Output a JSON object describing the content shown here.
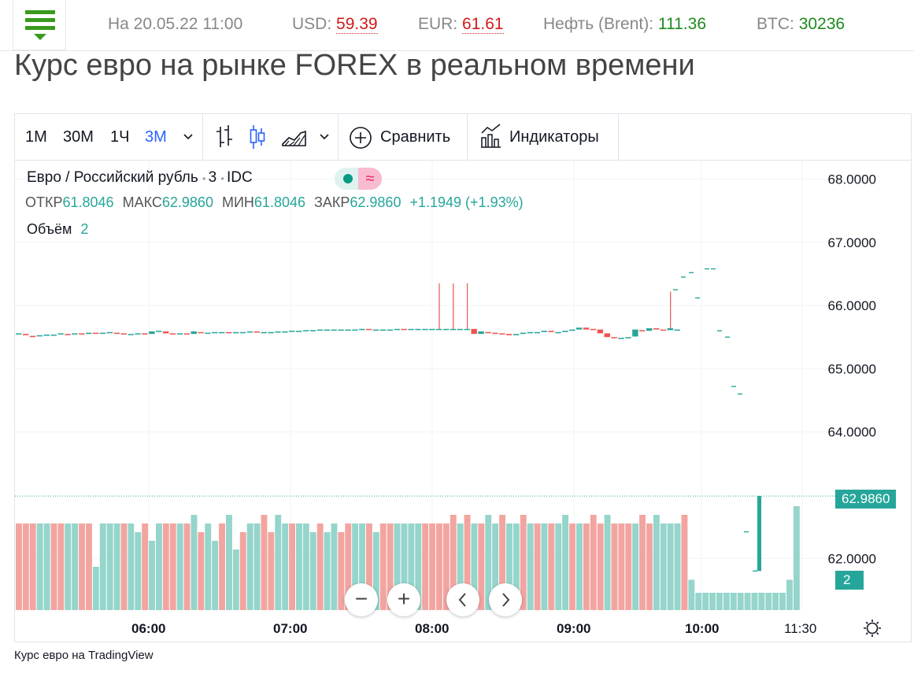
{
  "header": {
    "date_text": "На 20.05.22 11:00",
    "usd_label": "USD:",
    "usd_value": "59.39",
    "eur_label": "EUR:",
    "eur_value": "61.61",
    "oil_label": "Нефть (Brent):",
    "oil_value": "111.36",
    "btc_label": "BTC:",
    "btc_value": "30236"
  },
  "page_title": "Курс евро на рынке FOREX в реальном времени",
  "toolbar": {
    "intervals": [
      "1М",
      "30М",
      "1Ч",
      "3М"
    ],
    "active_interval": "3М",
    "compare_label": "Сравнить",
    "indicators_label": "Индикаторы"
  },
  "legend": {
    "symbol": "Евро / Российский рубль",
    "interval": "3",
    "source": "IDC",
    "ohlc": {
      "open_label": "ОТКР",
      "open": "61.8046",
      "high_label": "МАКС",
      "high": "62.9860",
      "low_label": "МИН",
      "low": "61.8046",
      "close_label": "ЗАКР",
      "close": "62.9860",
      "change": "+1.1949 (+1.93%)"
    },
    "volume_label": "Объём",
    "volume_value": "2"
  },
  "price_tag": "62.9860",
  "volume_tag": "2",
  "caption": "Курс евро на TradingView",
  "colors": {
    "up": "#26a69a",
    "down": "#ef5350",
    "vol_up": "#95d5cb",
    "vol_down": "#f2a5a0",
    "accent": "#2962ff"
  },
  "chart_data": {
    "type": "candlestick",
    "y_ticks": [
      "68.0000",
      "67.0000",
      "66.0000",
      "65.0000",
      "64.0000",
      "62.0000"
    ],
    "y_tick_values": [
      68,
      67,
      66,
      65,
      64,
      62
    ],
    "ylim": [
      61.2,
      68.5
    ],
    "x_ticks": [
      "06:00",
      "07:00",
      "08:00",
      "09:00",
      "10:00",
      "11:30"
    ],
    "last_price": 62.986,
    "candles": [
      {
        "o": 65.56,
        "c": 65.56
      },
      {
        "o": 65.55,
        "c": 65.53
      },
      {
        "o": 65.52,
        "c": 65.5
      },
      {
        "o": 65.52,
        "c": 65.53
      },
      {
        "o": 65.53,
        "c": 65.54
      },
      {
        "o": 65.54,
        "c": 65.54
      },
      {
        "o": 65.55,
        "c": 65.56
      },
      {
        "o": 65.55,
        "c": 65.54
      },
      {
        "o": 65.55,
        "c": 65.56
      },
      {
        "o": 65.56,
        "c": 65.55
      },
      {
        "o": 65.55,
        "c": 65.57
      },
      {
        "o": 65.57,
        "c": 65.56
      },
      {
        "o": 65.57,
        "c": 65.57
      },
      {
        "o": 65.57,
        "c": 65.58
      },
      {
        "o": 65.57,
        "c": 65.56
      },
      {
        "o": 65.56,
        "c": 65.55
      },
      {
        "o": 65.55,
        "c": 65.55
      },
      {
        "o": 65.55,
        "c": 65.56
      },
      {
        "o": 65.56,
        "c": 65.55
      },
      {
        "o": 65.55,
        "c": 65.59
      },
      {
        "o": 65.59,
        "c": 65.6
      },
      {
        "o": 65.59,
        "c": 65.56
      },
      {
        "o": 65.56,
        "c": 65.55
      },
      {
        "o": 65.55,
        "c": 65.56
      },
      {
        "o": 65.56,
        "c": 65.55
      },
      {
        "o": 65.55,
        "c": 65.59
      },
      {
        "o": 65.58,
        "c": 65.57
      },
      {
        "o": 65.57,
        "c": 65.57
      },
      {
        "o": 65.57,
        "c": 65.58
      },
      {
        "o": 65.58,
        "c": 65.58
      },
      {
        "o": 65.58,
        "c": 65.57
      },
      {
        "o": 65.57,
        "c": 65.58
      },
      {
        "o": 65.58,
        "c": 65.58
      },
      {
        "o": 65.58,
        "c": 65.59
      },
      {
        "o": 65.59,
        "c": 65.58
      },
      {
        "o": 65.58,
        "c": 65.58
      },
      {
        "o": 65.58,
        "c": 65.58
      },
      {
        "o": 65.58,
        "c": 65.59
      },
      {
        "o": 65.59,
        "c": 65.59
      },
      {
        "o": 65.59,
        "c": 65.6
      },
      {
        "o": 65.6,
        "c": 65.6
      },
      {
        "o": 65.6,
        "c": 65.61
      },
      {
        "o": 65.61,
        "c": 65.61
      },
      {
        "o": 65.61,
        "c": 65.62
      },
      {
        "o": 65.62,
        "c": 65.62
      },
      {
        "o": 65.62,
        "c": 65.62
      },
      {
        "o": 65.62,
        "c": 65.62
      },
      {
        "o": 65.62,
        "c": 65.62
      },
      {
        "o": 65.62,
        "c": 65.62
      },
      {
        "o": 65.62,
        "c": 65.63
      },
      {
        "o": 65.63,
        "c": 65.62
      },
      {
        "o": 65.62,
        "c": 65.62
      },
      {
        "o": 65.62,
        "c": 65.62
      },
      {
        "o": 65.62,
        "c": 65.62
      },
      {
        "o": 65.62,
        "c": 65.63
      },
      {
        "o": 65.63,
        "c": 65.62
      },
      {
        "o": 65.62,
        "c": 65.63
      },
      {
        "o": 65.63,
        "c": 65.63
      },
      {
        "o": 65.63,
        "c": 65.63
      },
      {
        "o": 65.63,
        "c": 65.63
      },
      {
        "o": 65.63,
        "c": 65.63,
        "h": 66.35
      },
      {
        "o": 65.63,
        "c": 65.63
      },
      {
        "o": 65.63,
        "c": 65.63,
        "h": 66.35
      },
      {
        "o": 65.63,
        "c": 65.63
      },
      {
        "o": 65.63,
        "c": 65.63,
        "h": 66.35
      },
      {
        "o": 65.63,
        "c": 65.55
      },
      {
        "o": 65.55,
        "c": 65.59
      },
      {
        "o": 65.58,
        "c": 65.57
      },
      {
        "o": 65.57,
        "c": 65.56
      },
      {
        "o": 65.56,
        "c": 65.55
      },
      {
        "o": 65.55,
        "c": 65.53
      },
      {
        "o": 65.53,
        "c": 65.55
      },
      {
        "o": 65.55,
        "c": 65.57
      },
      {
        "o": 65.57,
        "c": 65.58
      },
      {
        "o": 65.58,
        "c": 65.58
      },
      {
        "o": 65.58,
        "c": 65.6
      },
      {
        "o": 65.6,
        "c": 65.58
      },
      {
        "o": 65.58,
        "c": 65.58
      },
      {
        "o": 65.58,
        "c": 65.6
      },
      {
        "o": 65.6,
        "c": 65.62
      },
      {
        "o": 65.62,
        "c": 65.65
      },
      {
        "o": 65.65,
        "c": 65.62
      },
      {
        "o": 65.63,
        "c": 65.62
      },
      {
        "o": 65.62,
        "c": 65.56
      },
      {
        "o": 65.56,
        "c": 65.5
      },
      {
        "o": 65.5,
        "c": 65.49
      },
      {
        "o": 65.49,
        "c": 65.49
      },
      {
        "o": 65.49,
        "c": 65.5
      },
      {
        "o": 65.51,
        "c": 65.62
      },
      {
        "o": 65.61,
        "c": 65.6
      },
      {
        "o": 65.6,
        "c": 65.64
      },
      {
        "o": 65.64,
        "c": 65.62
      },
      {
        "o": 65.62,
        "c": 65.61
      },
      {
        "o": 65.61,
        "c": 65.64,
        "h": 66.22
      },
      {
        "o": 65.62,
        "c": 65.62
      }
    ],
    "late_ticks": [
      66.25,
      66.45,
      66.52,
      66.58,
      66.12,
      66.58,
      65.6,
      65.5,
      64.72,
      64.6,
      62.42,
      61.8
    ],
    "volumes": [
      2,
      2,
      2,
      2,
      2,
      2,
      2,
      2,
      2,
      2,
      2,
      1,
      2,
      2,
      2,
      2,
      2,
      1.8,
      2,
      1.6,
      2,
      2,
      2,
      2,
      2,
      2.2,
      1.8,
      2,
      1.6,
      2,
      2.2,
      1.4,
      1.8,
      2,
      2,
      2.2,
      1.8,
      2.2,
      2,
      2,
      2,
      2,
      1.8,
      2,
      1.8,
      2,
      1.8,
      2,
      2,
      2,
      2,
      1.8,
      2,
      2,
      2,
      2,
      2,
      2,
      2,
      2,
      2,
      2,
      2.2,
      2,
      2.2,
      2,
      2,
      2.2,
      2,
      2.2,
      2,
      2,
      2.2,
      2,
      2,
      2,
      2,
      2,
      2.2,
      2,
      2,
      2,
      2.2,
      2,
      2.2,
      2,
      2,
      2,
      2,
      2.2,
      2,
      2.2,
      2,
      2,
      2,
      2.2,
      0.7,
      0.4,
      0.4,
      0.4,
      0.4,
      0.4,
      0.4,
      0.4,
      0.4,
      0.4,
      0.4,
      0.4,
      0.4,
      0.4,
      0.7,
      2.4
    ],
    "volume_ups": [
      0,
      0,
      0,
      1,
      1,
      0,
      0,
      1,
      1,
      0,
      0,
      1,
      1,
      1,
      1,
      0,
      1,
      1,
      0,
      1,
      1,
      0,
      0,
      1,
      0,
      1,
      0,
      1,
      1,
      0,
      1,
      1,
      0,
      1,
      1,
      0,
      0,
      1,
      1,
      0,
      1,
      1,
      1,
      0,
      1,
      1,
      0,
      0,
      1,
      1,
      0,
      1,
      0,
      0,
      1,
      1,
      1,
      1,
      0,
      0,
      0,
      0,
      0,
      1,
      0,
      1,
      0,
      1,
      1,
      0,
      1,
      1,
      0,
      1,
      0,
      1,
      0,
      1,
      1,
      0,
      1,
      0,
      0,
      0,
      1,
      0,
      0,
      0,
      1,
      0,
      0,
      1,
      1,
      1,
      1,
      0,
      1,
      1,
      1,
      1,
      1,
      1,
      1,
      1,
      1,
      1,
      1,
      1,
      1,
      1,
      1,
      1
    ]
  }
}
